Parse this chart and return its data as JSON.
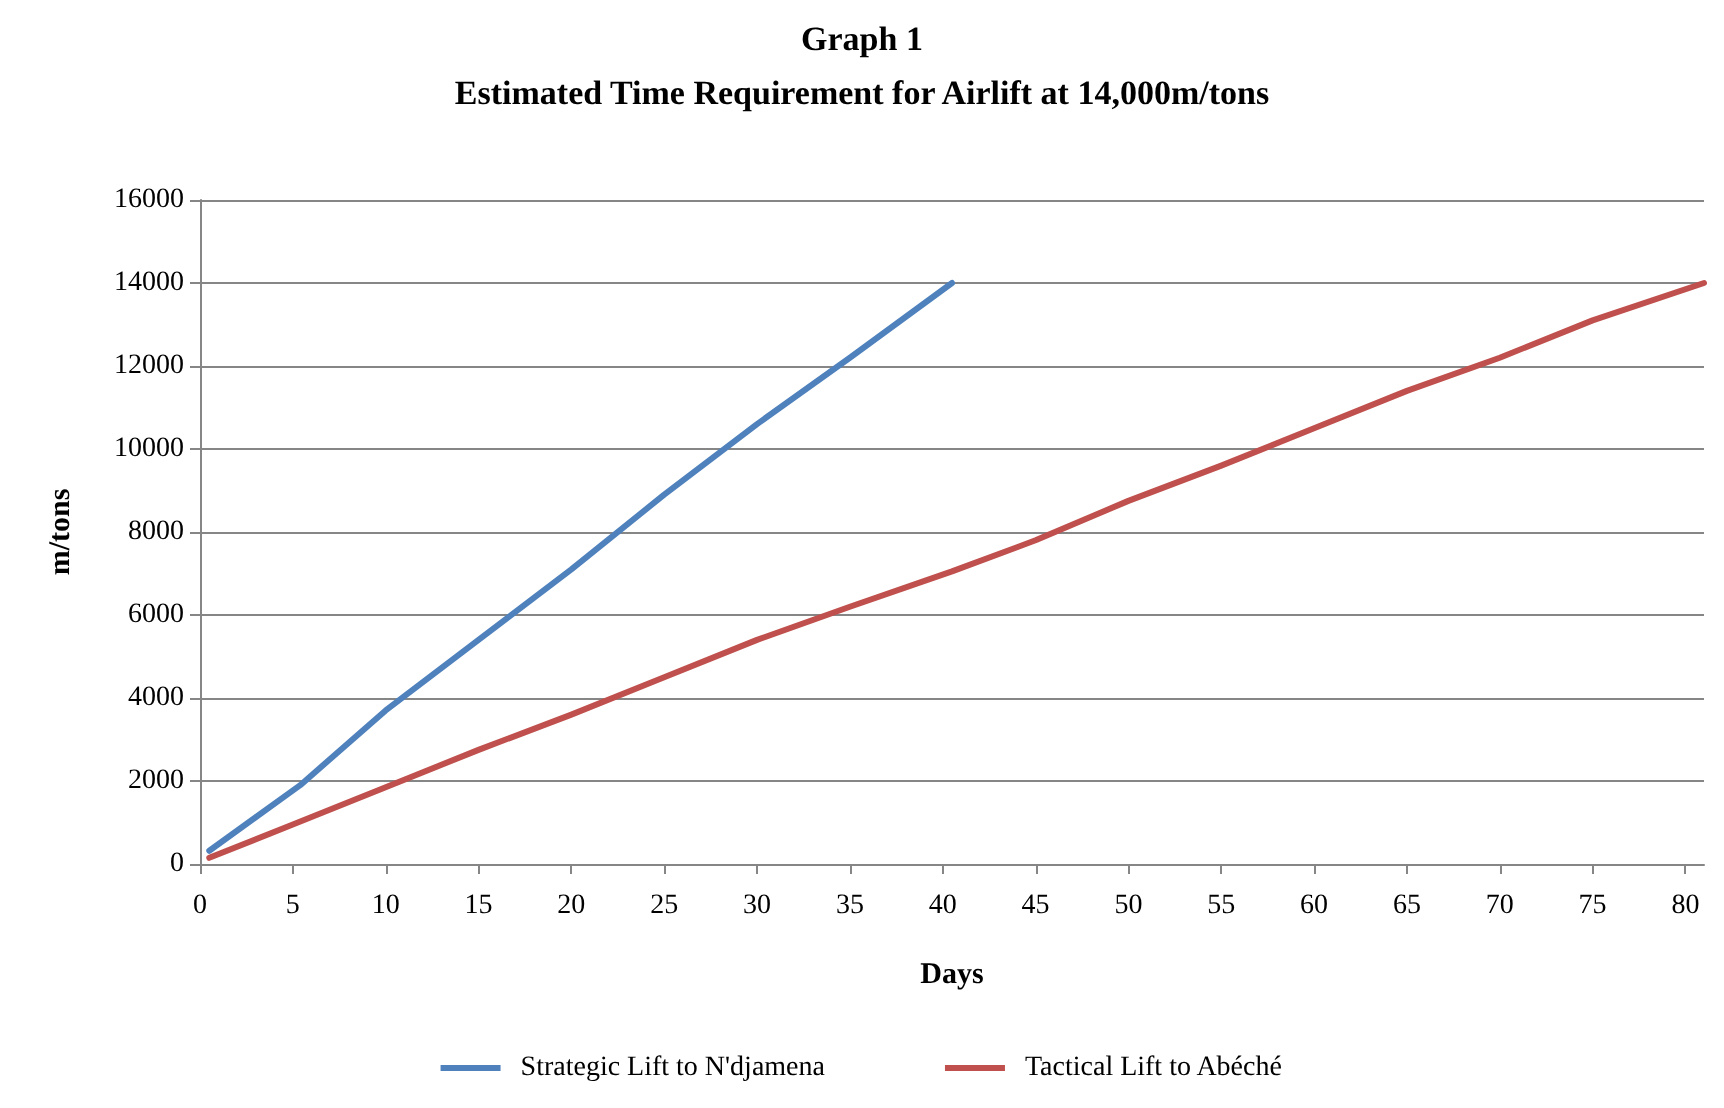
{
  "chart_data": {
    "type": "line",
    "title": "Graph 1",
    "subtitle": "Estimated Time Requirement for Airlift at 14,000m/tons",
    "xlabel": "Days",
    "ylabel": "m/tons",
    "series": [
      {
        "name": "Strategic Lift to N'djamena",
        "color": "#4f81bd",
        "x": [
          0.5,
          5.4,
          10,
          15,
          20,
          25,
          30,
          35,
          40.5
        ],
        "values": [
          320,
          1900,
          3700,
          5400,
          7100,
          8900,
          10600,
          12200,
          14000
        ]
      },
      {
        "name": "Tactical Lift to Abéché",
        "color": "#c0504d",
        "x": [
          0.5,
          5,
          10,
          15,
          20,
          25,
          30,
          35,
          40.5,
          45,
          50,
          55,
          60,
          65,
          70,
          75,
          81
        ],
        "values": [
          150,
          950,
          1850,
          2750,
          3600,
          4500,
          5400,
          6200,
          7050,
          7800,
          8750,
          9600,
          10500,
          11400,
          12200,
          13100,
          14000
        ]
      }
    ],
    "xlim": [
      0,
      81
    ],
    "xticks": [
      0,
      5,
      10,
      15,
      20,
      25,
      30,
      35,
      40,
      45,
      50,
      55,
      60,
      65,
      70,
      75,
      80
    ],
    "ylim": [
      0,
      16000
    ],
    "yticks": [
      0,
      2000,
      4000,
      6000,
      8000,
      10000,
      12000,
      14000,
      16000
    ],
    "grid": "y",
    "legend": "bottom",
    "marker": "none",
    "line_style": "solid"
  }
}
